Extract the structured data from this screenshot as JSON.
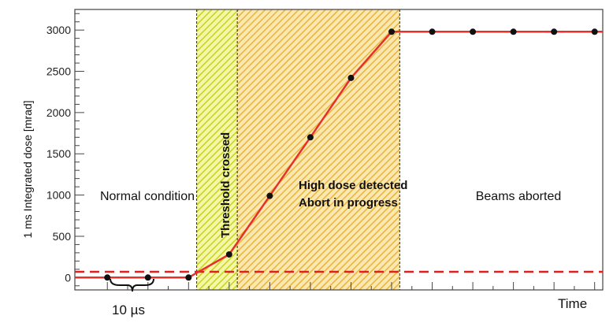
{
  "chart_data": {
    "type": "line",
    "title": "",
    "xlabel": "Time",
    "ylabel": "1 ms Integrated dose [mrad]",
    "ylim": [
      -150,
      3250
    ],
    "y_ticks": [
      0,
      500,
      1000,
      1500,
      2000,
      2500,
      3000
    ],
    "y_tick_labels": [
      "0",
      "500",
      "1000",
      "1500",
      "2000",
      "2500",
      "3000"
    ],
    "x_unit_step_label": "10 µs",
    "xlim": [
      -0.8,
      12.2
    ],
    "series": [
      {
        "name": "",
        "color": "#e8302a",
        "x": [
          0,
          1,
          2,
          3,
          4,
          5,
          6,
          7,
          8,
          9,
          10,
          11,
          12
        ],
        "y": [
          0,
          0,
          0,
          280,
          990,
          1700,
          2420,
          2980,
          2980,
          2980,
          2980,
          2980,
          2980
        ]
      }
    ],
    "threshold": {
      "value": 70,
      "color": "#e02020",
      "style": "dashed"
    },
    "regions": [
      {
        "label": "Normal condition",
        "x_start": -0.8,
        "x_end": 2.2,
        "fill": "none"
      },
      {
        "label": "Threshold crossed",
        "x_start": 2.2,
        "x_end": 3.2,
        "fill": "#e2ea5a",
        "hatch": true,
        "vertical_label": true
      },
      {
        "label": "High dose detected\nAbort in progress",
        "x_start": 3.2,
        "x_end": 7.2,
        "fill": "#f2c14e",
        "hatch": true
      },
      {
        "label": "Beams aborted",
        "x_start": 7.2,
        "x_end": 12.2,
        "fill": "none"
      }
    ],
    "region_label_lines": {
      "high_dose_line1": "High dose detected",
      "high_dose_line2": "Abort in progress"
    }
  }
}
